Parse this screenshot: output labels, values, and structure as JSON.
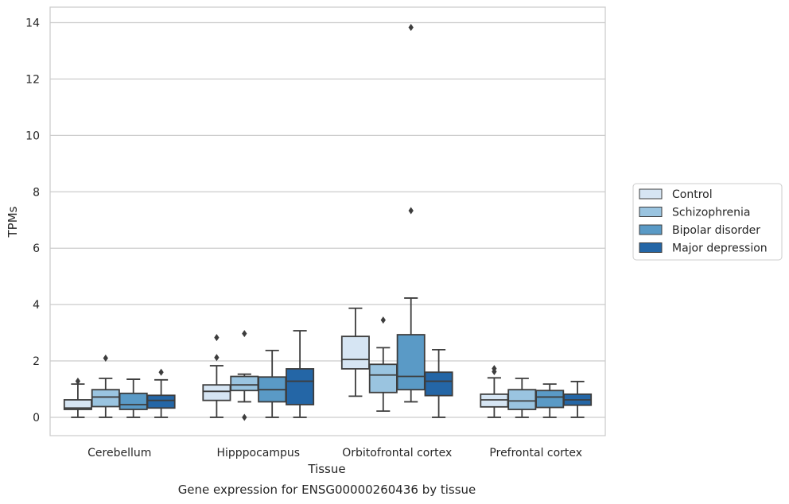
{
  "chart_data": {
    "type": "boxplot",
    "title": "",
    "caption": "Gene expression for ENSG00000260436 by tissue",
    "xlabel": "Tissue",
    "ylabel": "TPMs",
    "ylim": [
      -0.65,
      14.55
    ],
    "yticks": [
      0,
      2,
      4,
      6,
      8,
      10,
      12,
      14
    ],
    "grid": "y",
    "legend_position": "right",
    "categories": [
      "Cerebellum",
      "Hipppocampus",
      "Orbitofrontal cortex",
      "Prefrontal cortex"
    ],
    "series": [
      {
        "name": "Control",
        "color": "#d6e5f3",
        "boxes": [
          {
            "whislo": 0.0,
            "q1": 0.28,
            "med": 0.33,
            "q3": 0.62,
            "whishi": 1.18,
            "fliers": [
              1.28
            ]
          },
          {
            "whislo": 0.0,
            "q1": 0.6,
            "med": 0.92,
            "q3": 1.15,
            "whishi": 1.83,
            "fliers": [
              2.12,
              2.83
            ]
          },
          {
            "whislo": 0.75,
            "q1": 1.72,
            "med": 2.05,
            "q3": 2.87,
            "whishi": 3.87,
            "fliers": []
          },
          {
            "whislo": 0.0,
            "q1": 0.37,
            "med": 0.62,
            "q3": 0.82,
            "whishi": 1.4,
            "fliers": [
              1.62,
              1.73
            ]
          }
        ]
      },
      {
        "name": "Schizophrenia",
        "color": "#9ac4e0",
        "boxes": [
          {
            "whislo": 0.0,
            "q1": 0.38,
            "med": 0.72,
            "q3": 0.98,
            "whishi": 1.38,
            "fliers": [
              2.1
            ]
          },
          {
            "whislo": 0.55,
            "q1": 0.95,
            "med": 1.15,
            "q3": 1.45,
            "whishi": 1.53,
            "fliers": [
              0.0,
              2.97
            ]
          },
          {
            "whislo": 0.22,
            "q1": 0.88,
            "med": 1.5,
            "q3": 1.88,
            "whishi": 2.47,
            "fliers": [
              3.45
            ]
          },
          {
            "whislo": 0.0,
            "q1": 0.28,
            "med": 0.58,
            "q3": 0.98,
            "whishi": 1.38,
            "fliers": []
          }
        ]
      },
      {
        "name": "Bipolar disorder",
        "color": "#5a9ac6",
        "boxes": [
          {
            "whislo": 0.0,
            "q1": 0.28,
            "med": 0.45,
            "q3": 0.85,
            "whishi": 1.35,
            "fliers": []
          },
          {
            "whislo": 0.0,
            "q1": 0.55,
            "med": 0.98,
            "q3": 1.43,
            "whishi": 2.37,
            "fliers": []
          },
          {
            "whislo": 0.55,
            "q1": 0.98,
            "med": 1.45,
            "q3": 2.93,
            "whishi": 4.23,
            "fliers": [
              7.33,
              13.83
            ]
          },
          {
            "whislo": 0.0,
            "q1": 0.35,
            "med": 0.72,
            "q3": 0.95,
            "whishi": 1.18,
            "fliers": []
          }
        ]
      },
      {
        "name": "Major depression",
        "color": "#2466a6",
        "boxes": [
          {
            "whislo": 0.0,
            "q1": 0.33,
            "med": 0.6,
            "q3": 0.78,
            "whishi": 1.33,
            "fliers": [
              1.6
            ]
          },
          {
            "whislo": 0.0,
            "q1": 0.45,
            "med": 1.28,
            "q3": 1.72,
            "whishi": 3.07,
            "fliers": []
          },
          {
            "whislo": 0.0,
            "q1": 0.77,
            "med": 1.28,
            "q3": 1.6,
            "whishi": 2.4,
            "fliers": []
          },
          {
            "whislo": 0.0,
            "q1": 0.43,
            "med": 0.62,
            "q3": 0.82,
            "whishi": 1.27,
            "fliers": []
          }
        ]
      }
    ]
  }
}
